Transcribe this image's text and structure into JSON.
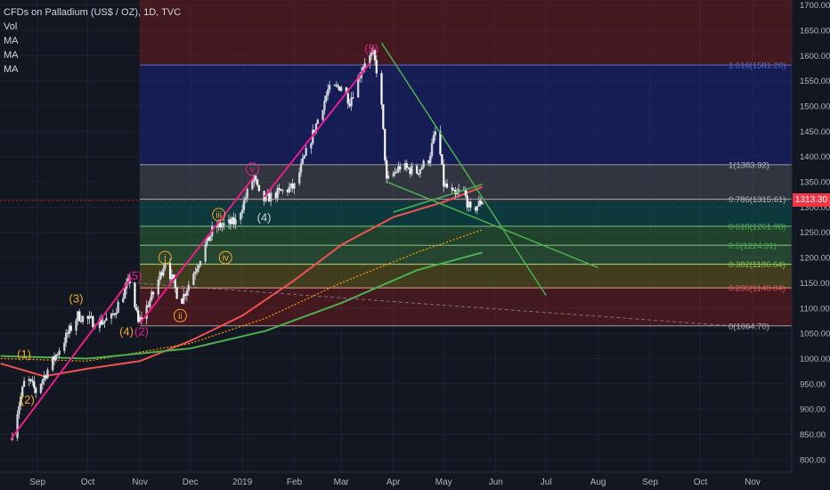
{
  "legend": {
    "title": "CFDs on Palladium (US$ / OZ), 1D, TVC",
    "items": [
      "Vol",
      "MA",
      "MA",
      "MA"
    ]
  },
  "last_price": "1313.30",
  "colors": {
    "background": "#131722",
    "grid": "#1e2230",
    "axis_text": "#b2b5be",
    "candle": "#d1d4dc",
    "wave_line": "#e91e8c",
    "wave_label_orange": "#f5a623",
    "wave_label_pink": "#e91e8c",
    "ma_red": "#ef5350",
    "ma_green": "#4caf50",
    "ma_dotted": "#ff9800",
    "trend_green": "#4caf50",
    "last_price": "#f23645"
  },
  "chart_data": {
    "type": "candlestick",
    "title": "CFDs on Palladium (US$ / OZ), 1D, TVC",
    "x_ticks": [
      "Sep",
      "Oct",
      "Nov",
      "Dec",
      "2019",
      "Feb",
      "Mar",
      "Apr",
      "May",
      "Jun",
      "Jul",
      "Aug",
      "Sep",
      "Oct",
      "Nov"
    ],
    "y_ticks": [
      800,
      850,
      900,
      950,
      1000,
      1050,
      1100,
      1150,
      1200,
      1250,
      1300,
      1350,
      1400,
      1450,
      1500,
      1550,
      1600,
      1650,
      1700
    ],
    "ylim": [
      775,
      1710
    ],
    "price_path": [
      {
        "date": "2018-08-16",
        "price": 840
      },
      {
        "date": "2018-08-25",
        "price": 965
      },
      {
        "date": "2018-08-31",
        "price": 935
      },
      {
        "date": "2018-09-25",
        "price": 1085
      },
      {
        "date": "2018-10-06",
        "price": 1070
      },
      {
        "date": "2018-10-15",
        "price": 1080
      },
      {
        "date": "2018-10-26",
        "price": 1155
      },
      {
        "date": "2018-10-31",
        "price": 1070
      },
      {
        "date": "2018-11-10",
        "price": 1135
      },
      {
        "date": "2018-11-16",
        "price": 1195
      },
      {
        "date": "2018-11-25",
        "price": 1110
      },
      {
        "date": "2018-12-15",
        "price": 1260
      },
      {
        "date": "2018-12-28",
        "price": 1270
      },
      {
        "date": "2019-01-08",
        "price": 1360
      },
      {
        "date": "2019-01-12",
        "price": 1310
      },
      {
        "date": "2019-01-20",
        "price": 1325
      },
      {
        "date": "2019-02-01",
        "price": 1340
      },
      {
        "date": "2019-02-21",
        "price": 1530
      },
      {
        "date": "2019-03-01",
        "price": 1540
      },
      {
        "date": "2019-03-06",
        "price": 1510
      },
      {
        "date": "2019-03-15",
        "price": 1590
      },
      {
        "date": "2019-03-20",
        "price": 1600
      },
      {
        "date": "2019-03-24",
        "price": 1545
      },
      {
        "date": "2019-03-28",
        "price": 1350
      },
      {
        "date": "2019-04-05",
        "price": 1380
      },
      {
        "date": "2019-04-15",
        "price": 1370
      },
      {
        "date": "2019-04-22",
        "price": 1395
      },
      {
        "date": "2019-04-27",
        "price": 1460
      },
      {
        "date": "2019-05-01",
        "price": 1345
      },
      {
        "date": "2019-05-08",
        "price": 1320
      },
      {
        "date": "2019-05-12",
        "price": 1340
      },
      {
        "date": "2019-05-17",
        "price": 1290
      },
      {
        "date": "2019-05-24",
        "price": 1313
      }
    ],
    "moving_averages": [
      {
        "name": "MA",
        "color": "#ef5350",
        "points": [
          {
            "date": "2018-08-10",
            "price": 990
          },
          {
            "date": "2018-09-05",
            "price": 965
          },
          {
            "date": "2018-10-01",
            "price": 980
          },
          {
            "date": "2018-11-01",
            "price": 995
          },
          {
            "date": "2018-12-01",
            "price": 1035
          },
          {
            "date": "2019-01-01",
            "price": 1085
          },
          {
            "date": "2019-02-01",
            "price": 1155
          },
          {
            "date": "2019-03-01",
            "price": 1225
          },
          {
            "date": "2019-04-01",
            "price": 1280
          },
          {
            "date": "2019-05-01",
            "price": 1310
          },
          {
            "date": "2019-05-24",
            "price": 1340
          }
        ]
      },
      {
        "name": "MA",
        "color": "#ff9800",
        "points": [
          {
            "date": "2018-08-10",
            "price": 1000
          },
          {
            "date": "2018-10-01",
            "price": 995
          },
          {
            "date": "2018-12-01",
            "price": 1030
          },
          {
            "date": "2019-01-15",
            "price": 1080
          },
          {
            "date": "2019-03-01",
            "price": 1150
          },
          {
            "date": "2019-04-15",
            "price": 1210
          },
          {
            "date": "2019-05-24",
            "price": 1255
          }
        ]
      },
      {
        "name": "MA",
        "color": "#4caf50",
        "points": [
          {
            "date": "2018-08-10",
            "price": 1005
          },
          {
            "date": "2018-10-01",
            "price": 1000
          },
          {
            "date": "2018-12-01",
            "price": 1020
          },
          {
            "date": "2019-01-15",
            "price": 1055
          },
          {
            "date": "2019-03-01",
            "price": 1110
          },
          {
            "date": "2019-04-15",
            "price": 1175
          },
          {
            "date": "2019-05-24",
            "price": 1210
          }
        ]
      }
    ],
    "fibonacci": [
      {
        "label": "1.618(1581.20)",
        "price": 1581.2
      },
      {
        "label": "1(1383.92)",
        "price": 1383.92
      },
      {
        "label": "0.786(1315.61)",
        "price": 1315.61
      },
      {
        "label": "0.618(1261.98)",
        "price": 1261.98
      },
      {
        "label": "0.5(1224.31)",
        "price": 1224.31
      },
      {
        "label": "0.382(1186.64)",
        "price": 1186.64
      },
      {
        "label": "0.236(1140.04)",
        "price": 1140.04
      },
      {
        "label": "0(1064.70)",
        "price": 1064.7
      }
    ],
    "fib_bands": [
      {
        "top": 1710,
        "bottom": 1581.2,
        "color": "rgba(183,28,28,0.30)"
      },
      {
        "top": 1581.2,
        "bottom": 1383.92,
        "color": "rgba(26,35,126,0.55)"
      },
      {
        "top": 1383.92,
        "bottom": 1315.61,
        "color": "rgba(120,123,134,0.30)"
      },
      {
        "top": 1315.61,
        "bottom": 1261.98,
        "color": "rgba(0,137,123,0.30)"
      },
      {
        "top": 1261.98,
        "bottom": 1224.31,
        "color": "rgba(56,142,60,0.35)"
      },
      {
        "top": 1224.31,
        "bottom": 1186.64,
        "color": "rgba(76,175,80,0.30)"
      },
      {
        "top": 1186.64,
        "bottom": 1140.04,
        "color": "rgba(130,119,23,0.40)"
      },
      {
        "top": 1140.04,
        "bottom": 1064.7,
        "color": "rgba(183,28,28,0.30)"
      }
    ],
    "fib_start_date": "2018-11-01",
    "fib_line_colors": [
      "#5c6bc0",
      "#9e9e9e",
      "#9e9e9e",
      "#81c784",
      "#81c784",
      "#aed581",
      "#ef9a9a",
      "#9e9e9e"
    ],
    "fib_label_colors": [
      "#5c6bc0",
      "#b2b5be",
      "#b2b5be",
      "#4caf50",
      "#4caf50",
      "#8bc34a",
      "#ef5350",
      "#b2b5be"
    ],
    "elliott_waves": [
      {
        "label": "(1)",
        "date": "2018-08-24",
        "price": 1010,
        "color": "#f5a623"
      },
      {
        "label": "(2)",
        "date": "2018-08-26",
        "price": 920,
        "color": "#f5a623"
      },
      {
        "label": "(3)",
        "date": "2018-09-24",
        "price": 1120,
        "color": "#f5a623"
      },
      {
        "label": "(4)",
        "date": "2018-10-24",
        "price": 1055,
        "color": "#f5a623"
      },
      {
        "label": "(5)",
        "date": "2018-10-29",
        "price": 1165,
        "color": "#e91e8c"
      },
      {
        "label": "(2)",
        "date": "2018-11-02",
        "price": 1055,
        "color": "#e91e8c"
      },
      {
        "label": "i",
        "date": "2018-11-16",
        "price": 1200,
        "color": "#f5a623"
      },
      {
        "label": "ii",
        "date": "2018-11-25",
        "price": 1085,
        "color": "#f5a623"
      },
      {
        "label": "iii",
        "date": "2018-12-18",
        "price": 1285,
        "color": "#f5a623"
      },
      {
        "label": "iv",
        "date": "2018-12-22",
        "price": 1200,
        "color": "#f5a623"
      },
      {
        "label": "v",
        "date": "2019-01-07",
        "price": 1375,
        "color": "#e91e8c"
      },
      {
        "label": "(4)",
        "date": "2019-01-14",
        "price": 1280,
        "color": "#d1d4dc"
      },
      {
        "label": "(5)",
        "date": "2019-03-19",
        "price": 1615,
        "color": "#e91e8c"
      }
    ],
    "wave_lines": [
      [
        {
          "date": "2018-08-16",
          "price": 840
        },
        {
          "date": "2018-10-27",
          "price": 1160
        }
      ],
      [
        {
          "date": "2018-11-01",
          "price": 1070
        },
        {
          "date": "2019-01-08",
          "price": 1360
        }
      ],
      [
        {
          "date": "2019-01-14",
          "price": 1320
        },
        {
          "date": "2019-03-18",
          "price": 1585
        }
      ]
    ],
    "trend_lines": [
      [
        {
          "date": "2019-03-25",
          "price": 1625
        },
        {
          "date": "2019-07-01",
          "price": 1125
        }
      ],
      [
        {
          "date": "2019-03-28",
          "price": 1350
        },
        {
          "date": "2019-08-01",
          "price": 1180
        }
      ],
      [
        {
          "date": "2019-04-01",
          "price": 1290
        },
        {
          "date": "2019-05-24",
          "price": 1345
        }
      ]
    ],
    "dashed_line": [
      {
        "date": "2018-10-27",
        "price": 1150
      },
      {
        "date": "2019-10-31",
        "price": 1062
      }
    ],
    "last_price": 1313.3
  }
}
